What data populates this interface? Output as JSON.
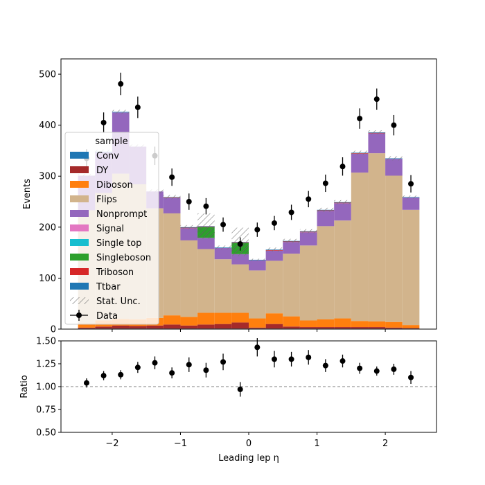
{
  "chart_data": [
    {
      "type": "bar",
      "stacked": true,
      "xlabel": "",
      "ylabel": "Events",
      "xlim": [
        -2.75,
        2.75
      ],
      "ylim": [
        0,
        530
      ],
      "yticks": [
        0,
        100,
        200,
        300,
        400,
        500
      ],
      "xticks": [
        -2,
        -1,
        0,
        1,
        2
      ],
      "bin_edges": [
        -2.5,
        -2.25,
        -2.0,
        -1.75,
        -1.5,
        -1.25,
        -1.0,
        -0.75,
        -0.5,
        -0.25,
        0.0,
        0.25,
        0.5,
        0.75,
        1.0,
        1.25,
        1.5,
        1.75,
        2.0,
        2.25,
        2.5
      ],
      "legend": {
        "title": "sample",
        "placement": "left",
        "entries": [
          "Conv",
          "DY",
          "Diboson",
          "Flips",
          "Nonprompt",
          "Signal",
          "Single top",
          "Singleboson",
          "Triboson",
          "Ttbar",
          "Stat. Unc.",
          "Data"
        ]
      },
      "series": [
        {
          "name": "Conv",
          "color": "#1f77b4",
          "values": [
            1,
            1,
            1,
            1,
            1,
            1,
            1,
            1,
            1,
            1,
            1,
            1,
            1,
            1,
            1,
            1,
            1,
            1,
            1,
            1
          ]
        },
        {
          "name": "DY",
          "color": "#a52a2a",
          "values": [
            2,
            4,
            6,
            5,
            6,
            8,
            6,
            8,
            9,
            12,
            2,
            9,
            4,
            3,
            3,
            3,
            3,
            3,
            2,
            1
          ]
        },
        {
          "name": "Diboson",
          "color": "#ff7f0e",
          "values": [
            8,
            12,
            13,
            13,
            15,
            18,
            17,
            23,
            22,
            19,
            18,
            21,
            20,
            13,
            15,
            17,
            12,
            11,
            11,
            6
          ]
        },
        {
          "name": "Flips",
          "color": "#d2b48c",
          "values": [
            222,
            250,
            285,
            265,
            215,
            200,
            150,
            125,
            105,
            95,
            94,
            103,
            123,
            147,
            183,
            192,
            291,
            330,
            287,
            226
          ]
        },
        {
          "name": "Nonprompt",
          "color": "#9467bd",
          "values": [
            68,
            80,
            120,
            74,
            33,
            30,
            24,
            22,
            22,
            20,
            20,
            20,
            23,
            26,
            30,
            34,
            37,
            39,
            33,
            24
          ]
        },
        {
          "name": "Signal",
          "color": "#e377c2",
          "values": [
            0,
            0,
            0,
            0,
            0,
            0,
            0,
            0,
            0,
            0,
            0,
            0,
            0,
            0,
            0,
            0,
            0,
            0,
            0,
            0
          ]
        },
        {
          "name": "Single top",
          "color": "#17becf",
          "values": [
            0,
            0,
            0,
            0,
            0,
            0,
            0,
            0,
            0,
            0,
            0,
            0,
            0,
            0,
            0,
            0,
            0,
            0,
            0,
            0
          ]
        },
        {
          "name": "Singleboson",
          "color": "#2ca02c",
          "values": [
            0,
            0,
            0,
            0,
            0,
            0,
            0,
            21,
            0,
            22,
            0,
            0,
            0,
            0,
            0,
            0,
            0,
            0,
            0,
            0
          ]
        },
        {
          "name": "Triboson",
          "color": "#d62728",
          "values": [
            0,
            0,
            0,
            0,
            0,
            1,
            1,
            1,
            0,
            1,
            0,
            1,
            1,
            1,
            1,
            1,
            1,
            1,
            0,
            0
          ]
        },
        {
          "name": "Ttbar",
          "color": "#1f77b4",
          "values": [
            0,
            1,
            1,
            0,
            0,
            1,
            1,
            1,
            1,
            1,
            1,
            1,
            1,
            1,
            1,
            1,
            1,
            1,
            1,
            1
          ]
        }
      ],
      "stat_unc": [
        3,
        4,
        4,
        4,
        4,
        4,
        4,
        25,
        4,
        28,
        2,
        4,
        4,
        4,
        4,
        4,
        4,
        4,
        4,
        3
      ],
      "data": {
        "name": "Data",
        "x": [
          -2.375,
          -2.125,
          -1.875,
          -1.625,
          -1.375,
          -1.125,
          -0.875,
          -0.625,
          -0.375,
          -0.125,
          0.125,
          0.375,
          0.625,
          0.875,
          1.125,
          1.375,
          1.625,
          1.875,
          2.125,
          2.375
        ],
        "y": [
          335,
          405,
          481,
          435,
          340,
          298,
          250,
          241,
          205,
          167,
          195,
          208,
          229,
          255,
          286,
          319,
          413,
          451,
          400,
          285
        ],
        "yerr": [
          18,
          20,
          22,
          21,
          18,
          17,
          16,
          16,
          14,
          13,
          14,
          14,
          15,
          16,
          17,
          18,
          20,
          21,
          20,
          17
        ]
      }
    },
    {
      "type": "scatter",
      "xlabel": "Leading lep η",
      "ylabel": "Ratio",
      "xlim": [
        -2.75,
        2.75
      ],
      "ylim": [
        0.5,
        1.5
      ],
      "yticks": [
        0.5,
        0.75,
        1.0,
        1.25,
        1.5
      ],
      "ytick_labels": [
        "0.50",
        "0.75",
        "1.00",
        "1.25",
        "1.50"
      ],
      "xticks": [
        -2,
        -1,
        0,
        1,
        2
      ],
      "xtick_labels": [
        "−2",
        "−1",
        "0",
        "1",
        "2"
      ],
      "reference_line": 1.0,
      "x": [
        -2.375,
        -2.125,
        -1.875,
        -1.625,
        -1.375,
        -1.125,
        -0.875,
        -0.625,
        -0.375,
        -0.125,
        0.125,
        0.375,
        0.625,
        0.875,
        1.125,
        1.375,
        1.625,
        1.875,
        2.125,
        2.375
      ],
      "y": [
        1.04,
        1.12,
        1.13,
        1.21,
        1.26,
        1.15,
        1.24,
        1.18,
        1.27,
        0.97,
        1.43,
        1.3,
        1.3,
        1.32,
        1.23,
        1.28,
        1.2,
        1.17,
        1.19,
        1.1
      ],
      "yerr": [
        0.05,
        0.05,
        0.05,
        0.06,
        0.07,
        0.06,
        0.08,
        0.08,
        0.09,
        0.08,
        0.1,
        0.09,
        0.08,
        0.08,
        0.07,
        0.07,
        0.06,
        0.05,
        0.06,
        0.07
      ]
    }
  ]
}
